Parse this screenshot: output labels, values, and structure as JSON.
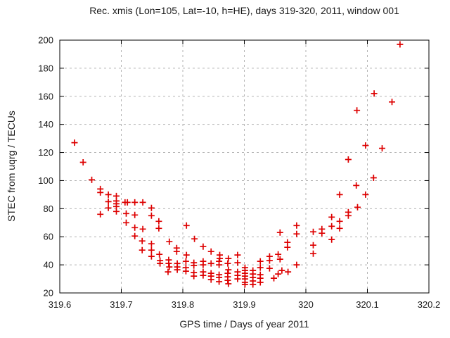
{
  "title": "Rec. xmis (Lon=105, Lat=-10, h=HE), days 319-320, 2011, window 001",
  "axes": {
    "x": {
      "label": "GPS time / Days of year 2011",
      "min": 319.6,
      "max": 320.2,
      "ticks": [
        319.6,
        319.7,
        319.8,
        319.9,
        320,
        320.1,
        320.2
      ],
      "tick_labels": [
        "319.6",
        "319.7",
        "319.8",
        "319.9",
        "320",
        "320.1",
        "320.2"
      ]
    },
    "y": {
      "label": "STEC from uqrg / TECUs",
      "min": 20,
      "max": 200,
      "ticks": [
        20,
        40,
        60,
        80,
        100,
        120,
        140,
        160,
        180,
        200
      ],
      "tick_labels": [
        "20",
        "40",
        "60",
        "80",
        "100",
        "120",
        "140",
        "160",
        "180",
        "200"
      ]
    }
  },
  "style": {
    "marker_color": "#dd0000",
    "grid_color": "#b3b3b3",
    "border_color": "#000000"
  },
  "chart_data": {
    "type": "scatter",
    "title": "Rec. xmis (Lon=105, Lat=-10, h=HE), days 319-320, 2011, window 001",
    "xlabel": "GPS time / Days of year 2011",
    "ylabel": "STEC from uqrg / TECUs",
    "xlim": [
      319.6,
      320.2
    ],
    "ylim": [
      20,
      200
    ],
    "grid": true,
    "legend": false,
    "marker": "plus",
    "series": [
      {
        "name": "STEC",
        "color": "#dd0000",
        "points": [
          [
            319.624,
            127
          ],
          [
            319.638,
            113
          ],
          [
            319.652,
            100.5
          ],
          [
            319.666,
            94
          ],
          [
            319.666,
            91.5
          ],
          [
            319.666,
            76
          ],
          [
            319.679,
            90
          ],
          [
            319.679,
            85
          ],
          [
            319.679,
            80.5
          ],
          [
            319.692,
            89
          ],
          [
            319.692,
            85.5
          ],
          [
            319.692,
            83.5
          ],
          [
            319.692,
            81.5
          ],
          [
            319.692,
            78
          ],
          [
            319.706,
            84.5
          ],
          [
            319.71,
            84.5
          ],
          [
            319.708,
            76.5
          ],
          [
            319.708,
            70
          ],
          [
            319.722,
            84.5
          ],
          [
            319.722,
            75.5
          ],
          [
            319.722,
            66.5
          ],
          [
            319.722,
            60.5
          ],
          [
            319.735,
            84.5
          ],
          [
            319.735,
            65.5
          ],
          [
            319.734,
            57
          ],
          [
            319.734,
            50.5
          ],
          [
            319.749,
            80.5
          ],
          [
            319.749,
            75
          ],
          [
            319.749,
            55
          ],
          [
            319.749,
            50.5
          ],
          [
            319.749,
            46
          ],
          [
            319.761,
            71
          ],
          [
            319.761,
            66
          ],
          [
            319.762,
            47.5
          ],
          [
            319.763,
            43
          ],
          [
            319.763,
            41
          ],
          [
            319.778,
            56.5
          ],
          [
            319.777,
            43.5
          ],
          [
            319.777,
            41
          ],
          [
            319.778,
            38.5
          ],
          [
            319.776,
            35
          ],
          [
            319.79,
            52
          ],
          [
            319.79,
            49.5
          ],
          [
            319.791,
            41
          ],
          [
            319.791,
            38.5
          ],
          [
            319.791,
            36.5
          ],
          [
            319.806,
            68
          ],
          [
            319.806,
            47
          ],
          [
            319.805,
            42.5
          ],
          [
            319.805,
            38
          ],
          [
            319.805,
            35.5
          ],
          [
            319.819,
            58.5
          ],
          [
            319.818,
            41.5
          ],
          [
            319.818,
            39.5
          ],
          [
            319.818,
            34.5
          ],
          [
            319.818,
            32
          ],
          [
            319.833,
            53
          ],
          [
            319.833,
            42.5
          ],
          [
            319.833,
            40
          ],
          [
            319.833,
            35
          ],
          [
            319.833,
            32.5
          ],
          [
            319.846,
            49.5
          ],
          [
            319.846,
            41
          ],
          [
            319.846,
            34
          ],
          [
            319.846,
            32
          ],
          [
            319.846,
            29.5
          ],
          [
            319.86,
            47
          ],
          [
            319.86,
            44.5
          ],
          [
            319.859,
            42.5
          ],
          [
            319.859,
            40
          ],
          [
            319.859,
            33
          ],
          [
            319.859,
            31
          ],
          [
            319.859,
            28
          ],
          [
            319.874,
            44.5
          ],
          [
            319.873,
            41
          ],
          [
            319.874,
            36.5
          ],
          [
            319.873,
            34
          ],
          [
            319.873,
            31.5
          ],
          [
            319.873,
            29
          ],
          [
            319.874,
            26.5
          ],
          [
            319.889,
            47
          ],
          [
            319.889,
            41.5
          ],
          [
            319.889,
            35
          ],
          [
            319.889,
            32.5
          ],
          [
            319.889,
            30
          ],
          [
            319.901,
            38
          ],
          [
            319.901,
            36
          ],
          [
            319.901,
            34
          ],
          [
            319.901,
            32
          ],
          [
            319.901,
            30
          ],
          [
            319.901,
            27.5
          ],
          [
            319.901,
            26
          ],
          [
            319.914,
            36
          ],
          [
            319.914,
            33.5
          ],
          [
            319.914,
            31
          ],
          [
            319.914,
            28.5
          ],
          [
            319.914,
            26
          ],
          [
            319.926,
            42.5
          ],
          [
            319.926,
            38
          ],
          [
            319.926,
            33
          ],
          [
            319.926,
            30.5
          ],
          [
            319.926,
            27.5
          ],
          [
            319.941,
            46
          ],
          [
            319.941,
            43
          ],
          [
            319.941,
            37.5
          ],
          [
            319.948,
            30.5
          ],
          [
            319.955,
            47.5
          ],
          [
            319.955,
            33.5
          ],
          [
            319.958,
            44
          ],
          [
            319.958,
            63
          ],
          [
            319.961,
            36
          ],
          [
            319.97,
            56
          ],
          [
            319.97,
            52.5
          ],
          [
            319.971,
            35
          ],
          [
            319.985,
            68
          ],
          [
            319.985,
            62
          ],
          [
            319.985,
            40
          ],
          [
            320.012,
            63.5
          ],
          [
            320.012,
            54
          ],
          [
            320.012,
            48
          ],
          [
            320.026,
            65.5
          ],
          [
            320.026,
            62.5
          ],
          [
            320.042,
            74
          ],
          [
            320.042,
            67.5
          ],
          [
            320.042,
            58
          ],
          [
            320.055,
            90
          ],
          [
            320.055,
            71
          ],
          [
            320.055,
            66
          ],
          [
            320.069,
            115
          ],
          [
            320.069,
            77.5
          ],
          [
            320.069,
            75
          ],
          [
            320.082,
            96.5
          ],
          [
            320.083,
            150
          ],
          [
            320.084,
            81
          ],
          [
            320.097,
            125
          ],
          [
            320.097,
            90
          ],
          [
            320.11,
            102
          ],
          [
            320.111,
            162
          ],
          [
            320.124,
            123
          ],
          [
            320.14,
            156
          ],
          [
            320.153,
            197
          ]
        ]
      }
    ]
  }
}
